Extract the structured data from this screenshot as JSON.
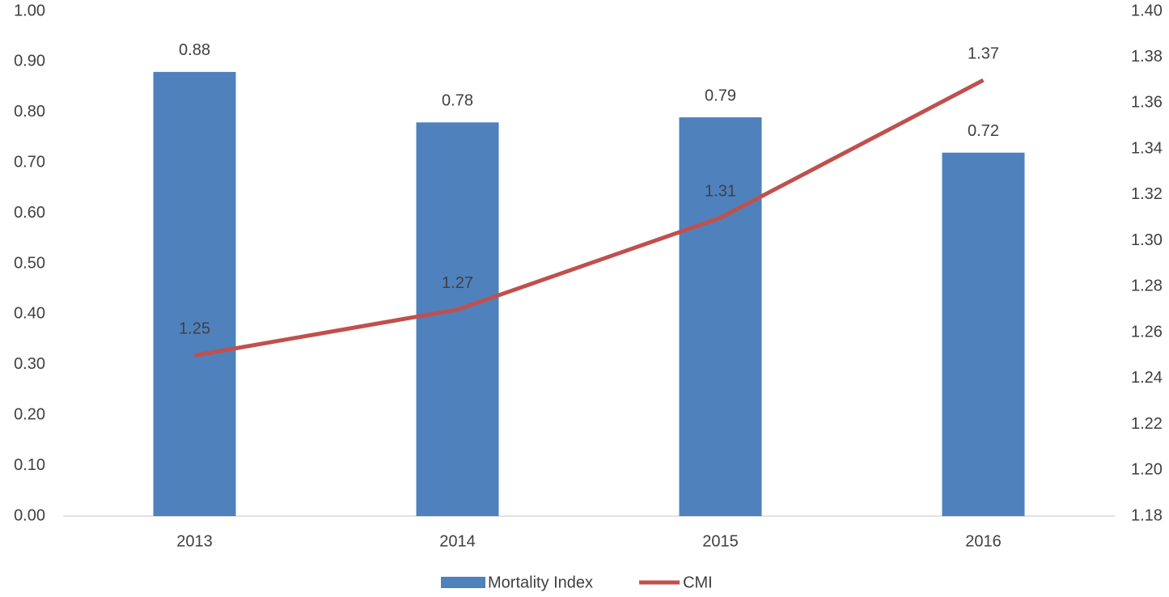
{
  "chart_data": {
    "type": "bar-line",
    "categories": [
      "2013",
      "2014",
      "2015",
      "2016"
    ],
    "series": [
      {
        "name": "Mortality Index",
        "type": "bar",
        "color": "#4f81bd",
        "values": [
          0.88,
          0.78,
          0.79,
          0.72
        ]
      },
      {
        "name": "CMI",
        "type": "line",
        "axis": "y2",
        "color": "#c0504d",
        "values": [
          1.25,
          1.27,
          1.31,
          1.37
        ]
      }
    ],
    "ylim": [
      0,
      1
    ],
    "yticks": [
      {
        "value": 0,
        "label": "0.00"
      },
      {
        "value": 0.1,
        "label": "0.10"
      },
      {
        "value": 0.2,
        "label": "0.20"
      },
      {
        "value": 0.3,
        "label": "0.30"
      },
      {
        "value": 0.4,
        "label": "0.40"
      },
      {
        "value": 0.5,
        "label": "0.50"
      },
      {
        "value": 0.6,
        "label": "0.60"
      },
      {
        "value": 0.7,
        "label": "0.70"
      },
      {
        "value": 0.8,
        "label": "0.80"
      },
      {
        "value": 0.9,
        "label": "0.90"
      },
      {
        "value": 1,
        "label": "1.00"
      }
    ],
    "y2lim": [
      1.18,
      1.4
    ],
    "y2ticks": [
      1.18,
      {
        "value": 1.2,
        "label": "1.20"
      },
      1.22,
      1.24,
      1.26,
      1.28,
      {
        "value": 1.3,
        "label": "1.30"
      },
      1.32,
      1.34,
      1.36,
      1.38,
      {
        "value": 1.4,
        "label": "1.40"
      }
    ],
    "legend": "bottom",
    "grid": false
  }
}
